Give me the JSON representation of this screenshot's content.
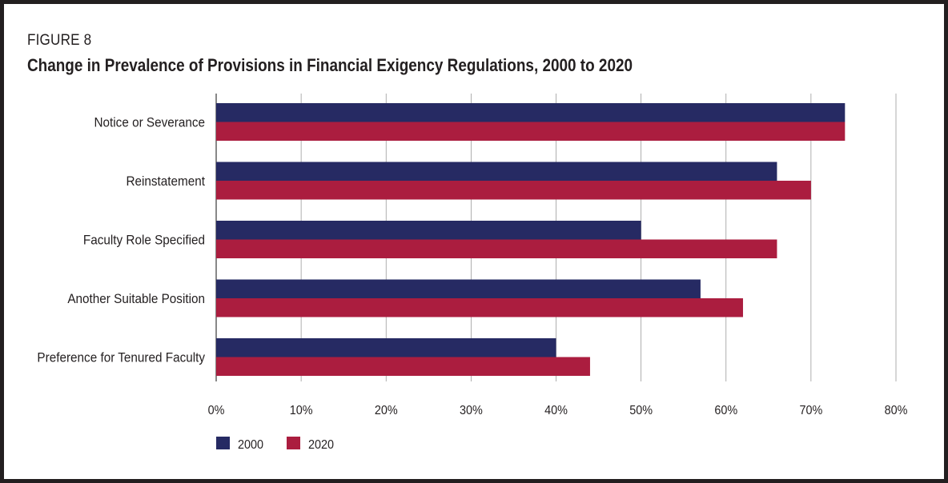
{
  "figure_label": "FIGURE 8",
  "chart_data": {
    "type": "bar",
    "orientation": "horizontal",
    "title": "Change in Prevalence of Provisions in Financial Exigency Regulations, 2000 to 2020",
    "categories": [
      "Notice or Severance",
      "Reinstatement",
      "Faculty Role Specified",
      "Another Suitable Position",
      "Preference for Tenured Faculty"
    ],
    "series": [
      {
        "name": "2000",
        "color": "#262a63",
        "values": [
          74,
          66,
          50,
          57,
          40
        ]
      },
      {
        "name": "2020",
        "color": "#ab1d3f",
        "values": [
          74,
          70,
          66,
          62,
          44
        ]
      }
    ],
    "xlim": [
      0,
      80
    ],
    "x_ticks": [
      "0%",
      "10%",
      "20%",
      "30%",
      "40%",
      "50%",
      "60%",
      "70%",
      "80%"
    ],
    "unit": "%",
    "grid": "vertical",
    "legend_position": "bottom-left"
  }
}
